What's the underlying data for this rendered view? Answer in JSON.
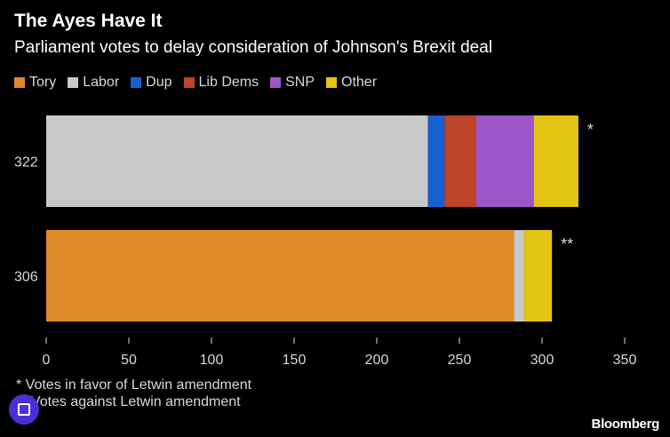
{
  "header": {
    "title": "The Ayes Have It",
    "subtitle": "Parliament votes to delay consideration of Johnson's Brexit deal"
  },
  "chart_data": {
    "type": "bar",
    "orientation": "horizontal",
    "stacked": true,
    "categories": [
      "322",
      "306"
    ],
    "series": [
      {
        "name": "Tory",
        "color": "#e0892a",
        "values": [
          0,
          283
        ]
      },
      {
        "name": "Labor",
        "color": "#c8c8c8",
        "values": [
          231,
          6
        ]
      },
      {
        "name": "Dup",
        "color": "#1a5fd0",
        "values": [
          10,
          0
        ]
      },
      {
        "name": "Lib Dems",
        "color": "#bf4326",
        "values": [
          19,
          0
        ]
      },
      {
        "name": "SNP",
        "color": "#9c56c9",
        "values": [
          35,
          0
        ]
      },
      {
        "name": "Other",
        "color": "#e3c413",
        "values": [
          27,
          17
        ]
      }
    ],
    "bar_markers": [
      "*",
      "**"
    ],
    "xlim": [
      0,
      350
    ],
    "xticks": [
      0,
      50,
      100,
      150,
      200,
      250,
      300,
      350
    ],
    "legend": "top",
    "grid": false
  },
  "footnotes": [
    "* Votes in favor of Letwin amendment",
    "** Votes against Letwin amendment"
  ],
  "brand": "Bloomberg",
  "icons": {
    "corner": "copy-icon"
  }
}
